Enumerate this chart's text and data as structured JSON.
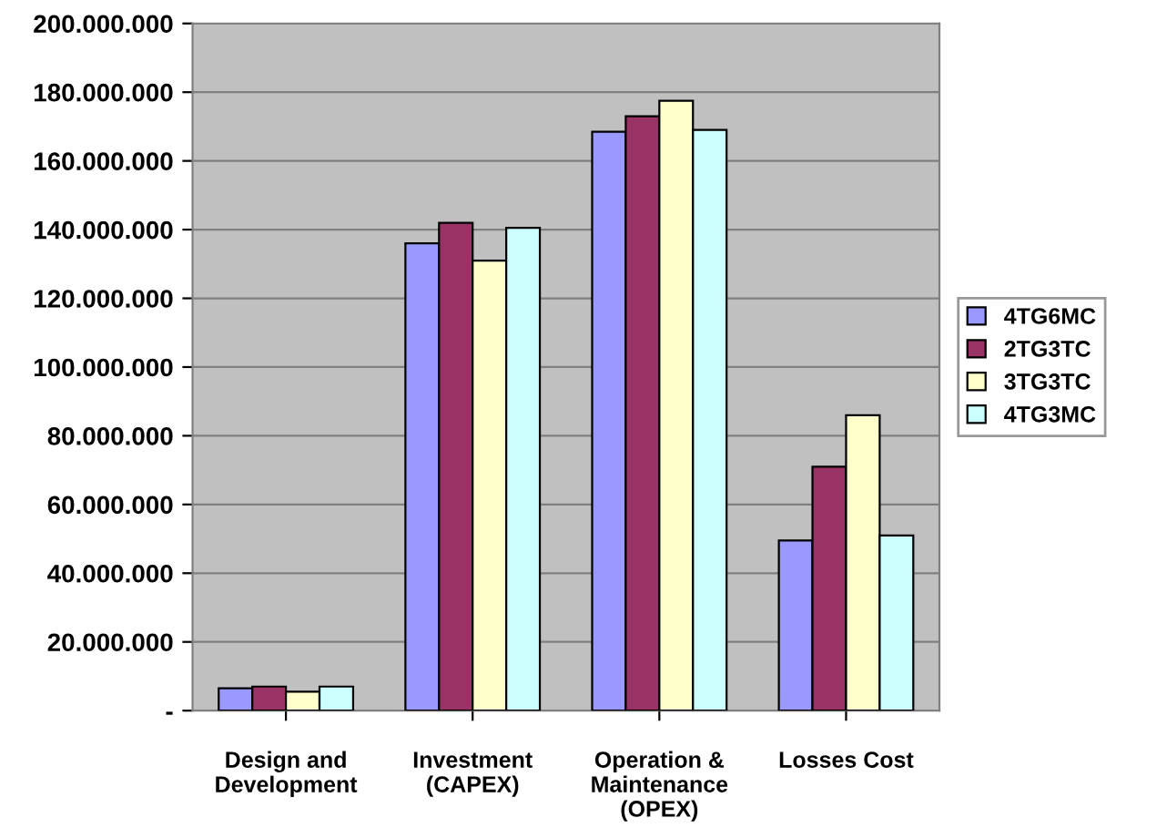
{
  "chart_data": {
    "type": "bar",
    "categories": [
      "Design and\nDevelopment",
      "Investment\n(CAPEX)",
      "Operation &\nMaintenance\n(OPEX)",
      "Losses Cost"
    ],
    "series": [
      {
        "name": "4TG6MC",
        "color": "#9999ff",
        "values": [
          6500000,
          136000000,
          168500000,
          49500000
        ]
      },
      {
        "name": "2TG3TC",
        "color": "#993366",
        "values": [
          7000000,
          142000000,
          173000000,
          71000000
        ]
      },
      {
        "name": "3TG3TC",
        "color": "#ffffcc",
        "values": [
          5500000,
          131000000,
          177500000,
          86000000
        ]
      },
      {
        "name": "4TG3MC",
        "color": "#ccffff",
        "values": [
          7000000,
          140500000,
          169000000,
          51000000
        ]
      }
    ],
    "ylim": [
      0,
      200000000
    ],
    "yticks": [
      {
        "value": 0,
        "label": "-"
      },
      {
        "value": 20000000,
        "label": "20.000.000"
      },
      {
        "value": 40000000,
        "label": "40.000.000"
      },
      {
        "value": 60000000,
        "label": "60.000.000"
      },
      {
        "value": 80000000,
        "label": "80.000.000"
      },
      {
        "value": 100000000,
        "label": "100.000.000"
      },
      {
        "value": 120000000,
        "label": "120.000.000"
      },
      {
        "value": 140000000,
        "label": "140.000.000"
      },
      {
        "value": 160000000,
        "label": "160.000.000"
      },
      {
        "value": 180000000,
        "label": "180.000.000"
      },
      {
        "value": 200000000,
        "label": "200.000.000"
      }
    ],
    "grid": "y",
    "legend": "right"
  }
}
